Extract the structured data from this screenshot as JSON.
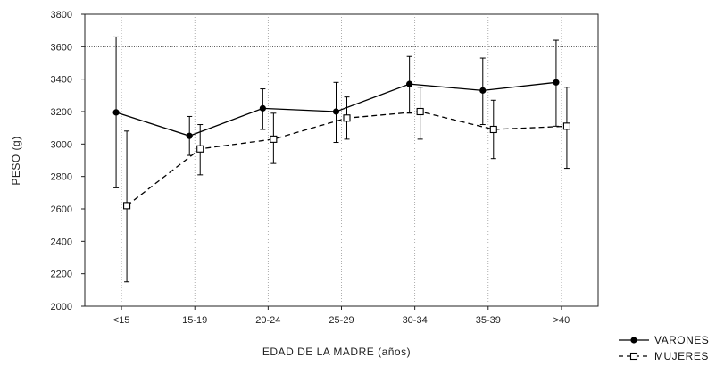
{
  "chart_data": {
    "type": "line",
    "title": "",
    "xlabel": "EDAD DE LA MADRE (años)",
    "ylabel": "PESO (g)",
    "categories": [
      "<15",
      "15-19",
      "20-24",
      "25-29",
      "30-34",
      "35-39",
      ">40"
    ],
    "ylim": [
      2000,
      3800
    ],
    "yticks": [
      2000,
      2200,
      2400,
      2600,
      2800,
      3000,
      3200,
      3400,
      3600,
      3800
    ],
    "ytick_labels": [
      "2000",
      "2200",
      "2400",
      "2600",
      "2800",
      "3000",
      "3200",
      "3400",
      "3600",
      "3800"
    ],
    "reference_line": 3600,
    "grid": false,
    "legend_position": "bottom-right",
    "series": [
      {
        "name": "VARONES",
        "style": "solid",
        "marker": "filled-circle",
        "color": "#000000",
        "values": [
          3195,
          3050,
          3220,
          3200,
          3370,
          3330,
          3380
        ],
        "err_low": [
          2730,
          2930,
          3090,
          3010,
          3190,
          3120,
          3110
        ],
        "err_high": [
          3660,
          3170,
          3340,
          3380,
          3540,
          3530,
          3640
        ]
      },
      {
        "name": "MUJERES",
        "style": "dashed",
        "marker": "open-square",
        "color": "#000000",
        "values": [
          2620,
          2970,
          3030,
          3160,
          3200,
          3090,
          3110
        ],
        "err_low": [
          2150,
          2810,
          2880,
          3030,
          3030,
          2910,
          2850
        ],
        "err_high": [
          3080,
          3120,
          3190,
          3290,
          3350,
          3270,
          3350
        ]
      }
    ]
  }
}
